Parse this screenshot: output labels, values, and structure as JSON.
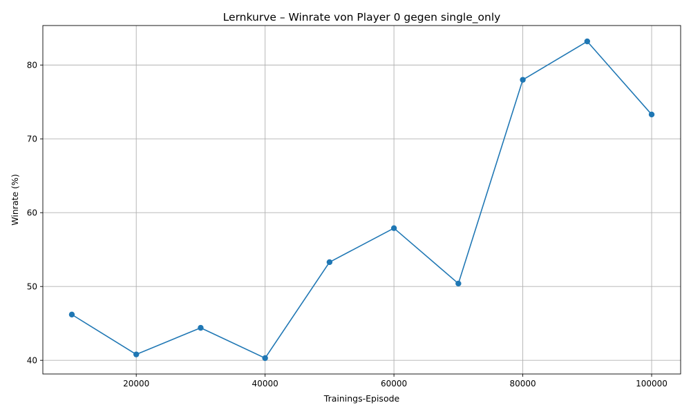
{
  "chart_data": {
    "type": "line",
    "title": "Lernkurve – Winrate von Player 0 gegen single_only",
    "xlabel": "Trainings-Episode",
    "ylabel": "Winrate (%)",
    "x": [
      10000,
      20000,
      30000,
      40000,
      50000,
      60000,
      70000,
      80000,
      90000,
      100000
    ],
    "series": [
      {
        "values": [
          46.2,
          40.8,
          44.4,
          40.3,
          53.3,
          57.9,
          50.4,
          78.0,
          83.2,
          73.3
        ]
      }
    ],
    "xlim": [
      5500,
      104500
    ],
    "ylim": [
      38.15,
      85.35
    ],
    "xticks": [
      20000,
      40000,
      60000,
      80000,
      100000
    ],
    "xtick_labels": [
      "20000",
      "40000",
      "60000",
      "80000",
      "100000"
    ],
    "yticks": [
      40,
      50,
      60,
      70,
      80
    ],
    "ytick_labels": [
      "40",
      "50",
      "60",
      "70",
      "80"
    ],
    "grid": true,
    "marker": "circle",
    "colors": {
      "line": "#1f77b4",
      "grid": "#b0b0b0",
      "axes": "#000000"
    }
  }
}
